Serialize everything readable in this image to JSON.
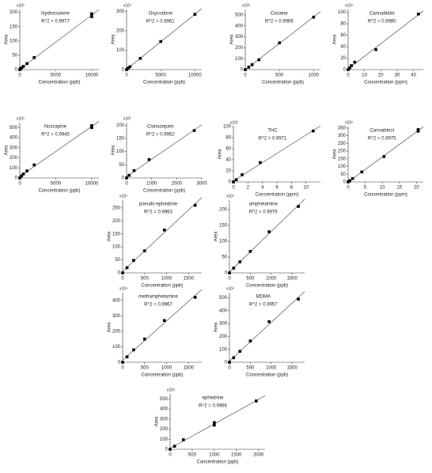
{
  "chart_data": [
    {
      "type": "scatter",
      "title": "Hydrocodone",
      "annotation": "R^2 = 0.9977",
      "exponent": "x10³",
      "xlabel": "Concentration (ppb)",
      "ylabel": "Area",
      "color": "#000000",
      "x": [
        0,
        100,
        250,
        500,
        1000,
        2000,
        10000,
        10000
      ],
      "values": [
        0,
        3,
        6,
        11,
        21,
        42,
        195,
        185
      ],
      "xlim": [
        0,
        11000
      ],
      "ylim": [
        0,
        210
      ],
      "xticks": [
        0,
        5000,
        10000
      ],
      "yticks": [
        0,
        50,
        100,
        150,
        200
      ]
    },
    {
      "type": "scatter",
      "title": "Oxycodone",
      "annotation": "R^2 = 0.9961",
      "exponent": "x10³",
      "xlabel": "Concentration (ppb)",
      "ylabel": "Area",
      "color": "#000000",
      "x": [
        0,
        250,
        500,
        2000,
        5000,
        10000
      ],
      "values": [
        0,
        8,
        15,
        58,
        145,
        285
      ],
      "xlim": [
        0,
        11000
      ],
      "ylim": [
        0,
        310
      ],
      "xticks": [
        0,
        5000,
        10000
      ],
      "yticks": [
        0,
        100,
        200,
        300
      ]
    },
    {
      "type": "scatter",
      "title": "Cocaine",
      "annotation": "R^2 = 0.9969",
      "exponent": "x10³",
      "xlabel": "Concentration (ppb)",
      "ylabel": "Area",
      "color": "#000000",
      "x": [
        0,
        50,
        100,
        200,
        500,
        1000
      ],
      "values": [
        0,
        22,
        45,
        90,
        245,
        480
      ],
      "xlim": [
        0,
        1100
      ],
      "ylim": [
        0,
        550
      ],
      "xticks": [
        0,
        500,
        1000
      ],
      "yticks": [
        0,
        100,
        200,
        300,
        400,
        500
      ]
    },
    {
      "type": "scatter",
      "title": "Cannabidiol",
      "annotation": "R^2 = 0.9980",
      "exponent": "x10³",
      "xlabel": "Concentration (ppm)",
      "ylabel": "Area",
      "color": "#000000",
      "x": [
        0,
        1,
        2,
        4,
        17,
        43
      ],
      "values": [
        0,
        3,
        7,
        13,
        35,
        97
      ],
      "xlim": [
        0,
        46
      ],
      "ylim": [
        0,
        105
      ],
      "xticks": [
        0,
        10,
        20,
        30,
        40
      ],
      "yticks": [
        0,
        20,
        40,
        60,
        80,
        100
      ]
    },
    {
      "type": "scatter",
      "title": "Noscapine",
      "annotation": "R^2 = 0.9945",
      "exponent": "x10³",
      "xlabel": "Concentration (ppb)",
      "ylabel": "Area",
      "color": "#000000",
      "x": [
        0,
        250,
        500,
        1000,
        2000,
        10000,
        10000
      ],
      "values": [
        0,
        20,
        40,
        70,
        130,
        500,
        520
      ],
      "xlim": [
        0,
        11000
      ],
      "ylim": [
        0,
        550
      ],
      "xticks": [
        0,
        5000,
        10000
      ],
      "yticks": [
        0,
        100,
        200,
        300,
        400,
        500
      ]
    },
    {
      "type": "scatter",
      "title": "Clonazepam",
      "annotation": "R^2 = 0.9952",
      "exponent": "x10⁴",
      "xlabel": "Concentration (ppb)",
      "ylabel": "Area",
      "color": "#000000",
      "x": [
        0,
        100,
        300,
        900,
        2700
      ],
      "values": [
        0,
        10,
        28,
        70,
        180
      ],
      "xlim": [
        0,
        3000
      ],
      "ylim": [
        0,
        210
      ],
      "xticks": [
        0,
        1000,
        2000,
        3000
      ],
      "yticks": [
        0,
        50,
        100,
        150,
        200
      ]
    },
    {
      "type": "scatter",
      "title": "THC",
      "annotation": "R^2 = 0.9971",
      "exponent": "x10³",
      "xlabel": "Concentration (ppm)",
      "ylabel": "Area",
      "color": "#000000",
      "x": [
        0,
        0.4,
        1.2,
        3.7,
        11
      ],
      "values": [
        0,
        4,
        13,
        35,
        92
      ],
      "xlim": [
        0,
        12
      ],
      "ylim": [
        0,
        100
      ],
      "xticks": [
        0,
        2,
        4,
        6,
        8,
        10
      ],
      "yticks": [
        0,
        20,
        40,
        60,
        80,
        100
      ]
    },
    {
      "type": "scatter",
      "title": "Cannabinol",
      "annotation": "R^2 = 0.9975",
      "exponent": "x10³",
      "xlabel": "Concentration (ppm)",
      "ylabel": "Area",
      "color": "#000000",
      "x": [
        0,
        0.5,
        1.3,
        4,
        10.5,
        20.5,
        20.5
      ],
      "values": [
        0,
        8,
        22,
        65,
        165,
        330,
        340
      ],
      "xlim": [
        0,
        22
      ],
      "ylim": [
        0,
        360
      ],
      "xticks": [
        0,
        5,
        10,
        15,
        20
      ],
      "yticks": [
        0,
        50,
        100,
        150,
        200,
        250,
        300,
        350
      ]
    },
    {
      "type": "scatter",
      "title": "pseudo-ephedrine",
      "annotation": "R^2 = 0.9963",
      "exponent": "x10⁴",
      "xlabel": "Concentration (ppb)",
      "ylabel": "Area",
      "color": "#000000",
      "x": [
        0,
        100,
        250,
        500,
        950,
        1650
      ],
      "values": [
        0,
        20,
        48,
        85,
        165,
        260
      ],
      "xlim": [
        0,
        1800
      ],
      "ylim": [
        0,
        280
      ],
      "xticks": [
        0,
        500,
        1000,
        1500
      ],
      "yticks": [
        0,
        50,
        100,
        150,
        200,
        250
      ]
    },
    {
      "type": "scatter",
      "title": "amphetamine",
      "annotation": "R^2 = 0.9979",
      "exponent": "x10⁴",
      "xlabel": "Concentration (ppb)",
      "ylabel": "Area",
      "color": "#000000",
      "x": [
        0,
        100,
        250,
        500,
        950,
        1650
      ],
      "values": [
        0,
        15,
        35,
        68,
        130,
        210
      ],
      "xlim": [
        0,
        1800
      ],
      "ylim": [
        0,
        230
      ],
      "xticks": [
        0,
        500,
        1000,
        1500
      ],
      "yticks": [
        0,
        50,
        100,
        150,
        200
      ]
    },
    {
      "type": "scatter",
      "title": "methamphetamine",
      "annotation": "R^2 = 0.9967",
      "exponent": "x10⁴",
      "xlabel": "Concentration (ppb)",
      "ylabel": "Area",
      "color": "#000000",
      "x": [
        0,
        100,
        250,
        500,
        950,
        1650
      ],
      "values": [
        0,
        35,
        80,
        150,
        270,
        420
      ],
      "xlim": [
        0,
        1800
      ],
      "ylim": [
        0,
        450
      ],
      "xticks": [
        0,
        500,
        1000,
        1500
      ],
      "yticks": [
        0,
        100,
        200,
        300,
        400
      ]
    },
    {
      "type": "scatter",
      "title": "MDMA",
      "annotation": "R^2 = 0.9957",
      "exponent": "x10⁴",
      "xlabel": "Concentration (ppb)",
      "ylabel": "Area",
      "color": "#000000",
      "x": [
        0,
        100,
        250,
        500,
        950,
        1650
      ],
      "values": [
        0,
        35,
        85,
        165,
        315,
        490
      ],
      "xlim": [
        0,
        1800
      ],
      "ylim": [
        0,
        540
      ],
      "xticks": [
        0,
        500,
        1000,
        1500
      ],
      "yticks": [
        0,
        100,
        200,
        300,
        400,
        500
      ]
    },
    {
      "type": "scatter",
      "title": "ephedrine",
      "annotation": "R^2 = 0.9966",
      "exponent": "x10³",
      "xlabel": "Concentration (ppb)",
      "ylabel": "Area",
      "color": "#000000",
      "x": [
        0,
        100,
        300,
        1000,
        1000,
        1950
      ],
      "values": [
        0,
        30,
        95,
        240,
        265,
        480
      ],
      "xlim": [
        0,
        2150
      ],
      "ylim": [
        0,
        550
      ],
      "xticks": [
        0,
        500,
        1000,
        1500,
        2000
      ],
      "yticks": [
        0,
        100,
        200,
        300,
        400,
        500
      ]
    }
  ]
}
